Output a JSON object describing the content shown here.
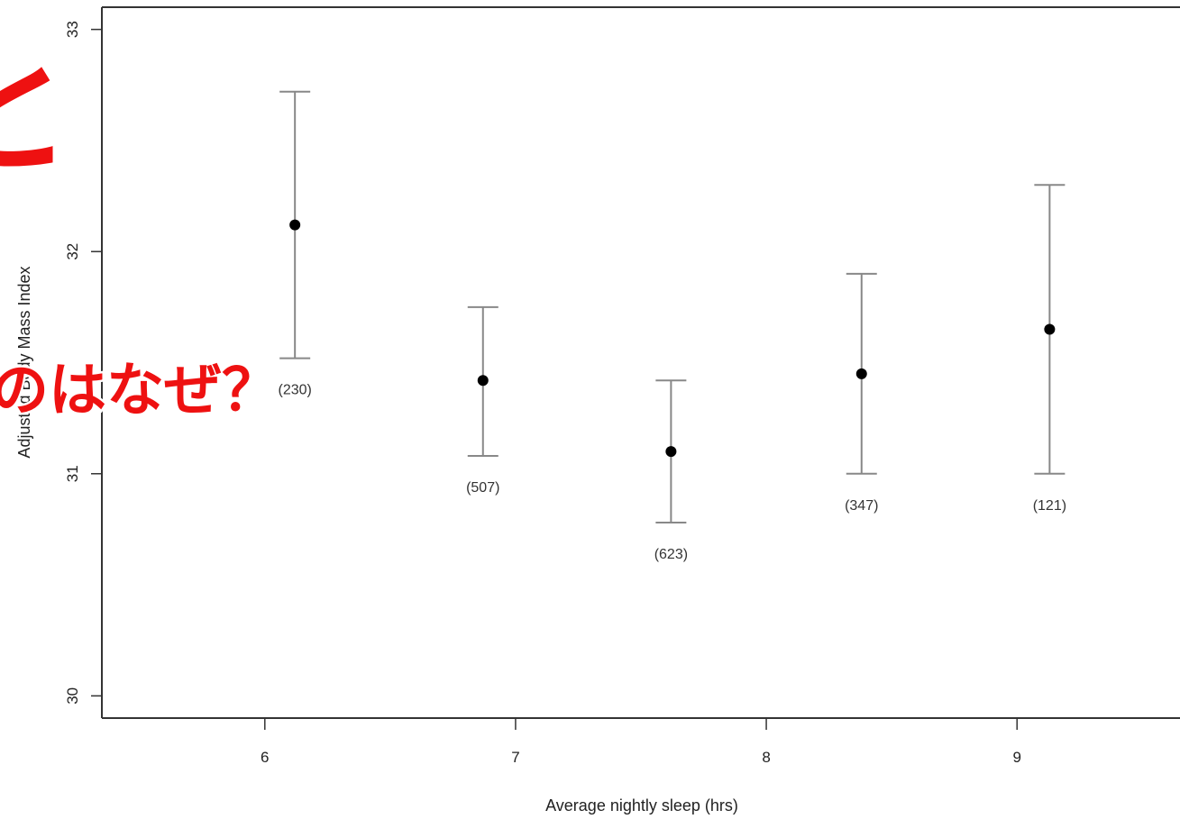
{
  "colors": {
    "background": "#ffffff",
    "axis": "#333333",
    "errorbar": "#888888",
    "point": "#000000",
    "overlay_red": "#ee1111"
  },
  "overlay": {
    "fragment_top": "と",
    "fragment_mid": "のはなぜ？"
  },
  "chart_data": {
    "type": "scatter",
    "title": "",
    "xlabel": "Average nightly sleep (hrs)",
    "ylabel": "Adjusted Body Mass Index",
    "xlim": [
      5.35,
      9.65
    ],
    "ylim": [
      29.9,
      33.1
    ],
    "xticks": [
      6,
      7,
      8,
      9
    ],
    "xtick_labels": [
      "6",
      "7",
      "8",
      "9"
    ],
    "yticks": [
      30,
      31,
      32,
      33
    ],
    "ytick_labels": [
      "30",
      "31",
      "32",
      "33"
    ],
    "grid": false,
    "legend": "none",
    "points": [
      {
        "x": 6.12,
        "y": 32.12,
        "lower": 31.52,
        "upper": 32.72,
        "n_label": "(230)"
      },
      {
        "x": 6.87,
        "y": 31.42,
        "lower": 31.08,
        "upper": 31.75,
        "n_label": "(507)"
      },
      {
        "x": 7.62,
        "y": 31.1,
        "lower": 30.78,
        "upper": 31.42,
        "n_label": "(623)"
      },
      {
        "x": 8.38,
        "y": 31.45,
        "lower": 31.0,
        "upper": 31.9,
        "n_label": "(347)"
      },
      {
        "x": 9.13,
        "y": 31.65,
        "lower": 31.0,
        "upper": 32.3,
        "n_label": "(121)"
      }
    ]
  }
}
